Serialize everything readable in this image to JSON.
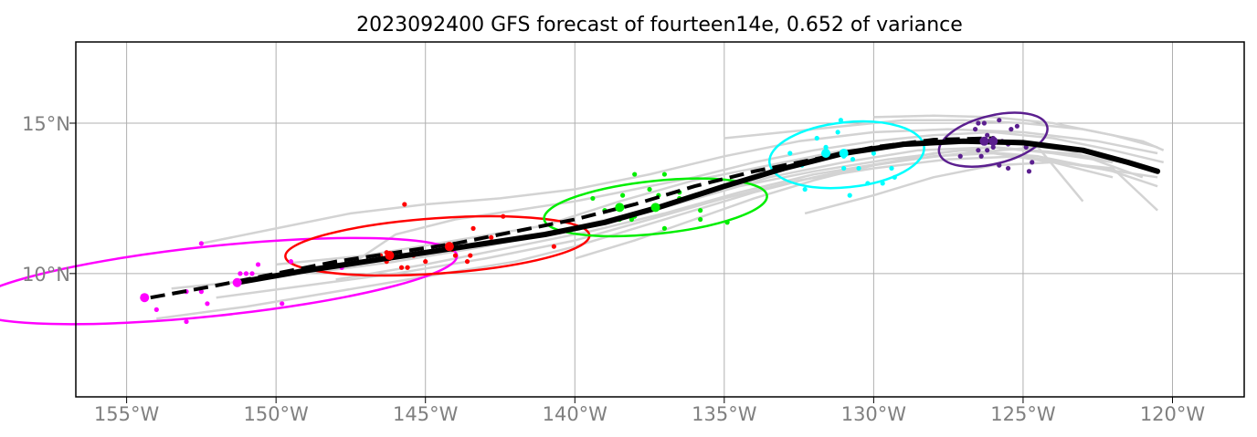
{
  "chart_data": {
    "type": "map-track",
    "title": "2023092400 GFS forecast of fourteen14e, 0.652 of variance",
    "x_ticks": [
      {
        "value": -155,
        "label": "155°W"
      },
      {
        "value": -150,
        "label": "150°W"
      },
      {
        "value": -145,
        "label": "145°W"
      },
      {
        "value": -140,
        "label": "140°W"
      },
      {
        "value": -135,
        "label": "135°W"
      },
      {
        "value": -130,
        "label": "130°W"
      },
      {
        "value": -125,
        "label": "125°W"
      },
      {
        "value": -120,
        "label": "120°W"
      }
    ],
    "y_ticks": [
      {
        "value": 10,
        "label": "10°N"
      },
      {
        "value": 15,
        "label": "15°N"
      }
    ],
    "xlim": [
      -156.7,
      -117.6
    ],
    "ylim": [
      5.9,
      17.7
    ],
    "grid": true,
    "colors": {
      "ensemble": "#d3d3d3",
      "mean": "#000000",
      "grid": "#b0b0b0",
      "groups": [
        "#ff00ff",
        "#ff0000",
        "#00ee00",
        "#00ffff",
        "#5b1f8f"
      ]
    },
    "mean_track": [
      [
        -151.3,
        9.7
      ],
      [
        -149,
        10.1
      ],
      [
        -147,
        10.4
      ],
      [
        -145,
        10.7
      ],
      [
        -143,
        11.0
      ],
      [
        -141,
        11.3
      ],
      [
        -139,
        11.7
      ],
      [
        -137.2,
        12.2
      ],
      [
        -135,
        12.9
      ],
      [
        -133,
        13.5
      ],
      [
        -131,
        14.0
      ],
      [
        -129,
        14.3
      ],
      [
        -127,
        14.4
      ],
      [
        -125,
        14.35
      ],
      [
        -123,
        14.1
      ],
      [
        -121.5,
        13.7
      ],
      [
        -120.5,
        13.4
      ]
    ],
    "control_track": [
      [
        -154.2,
        9.2
      ],
      [
        -152,
        9.6
      ],
      [
        -150,
        10.0
      ],
      [
        -148,
        10.4
      ],
      [
        -146,
        10.7
      ],
      [
        -144,
        11.0
      ],
      [
        -142,
        11.4
      ],
      [
        -140,
        11.8
      ],
      [
        -138,
        12.3
      ],
      [
        -136,
        12.9
      ],
      [
        -134,
        13.4
      ],
      [
        -132,
        13.8
      ],
      [
        -130,
        14.2
      ],
      [
        -128,
        14.45
      ],
      [
        -126,
        14.5
      ]
    ],
    "ensemble_tracks": [
      [
        [
          -152.5,
          11.0
        ],
        [
          -150,
          11.5
        ],
        [
          -147.5,
          12.0
        ],
        [
          -145,
          12.3
        ],
        [
          -142.5,
          12.5
        ],
        [
          -140,
          12.8
        ],
        [
          -137.5,
          13.3
        ],
        [
          -135,
          13.9
        ],
        [
          -132.5,
          14.4
        ],
        [
          -130,
          14.7
        ],
        [
          -127.5,
          14.8
        ],
        [
          -125,
          14.7
        ],
        [
          -122.5,
          14.4
        ],
        [
          -120.5,
          14.0
        ]
      ],
      [
        [
          -154.0,
          8.5
        ],
        [
          -151,
          8.9
        ],
        [
          -148,
          9.4
        ],
        [
          -145,
          9.9
        ],
        [
          -142,
          10.4
        ],
        [
          -140,
          10.9
        ],
        [
          -138,
          11.5
        ],
        [
          -136,
          12.1
        ],
        [
          -134,
          12.7
        ],
        [
          -132,
          13.2
        ],
        [
          -130,
          13.6
        ],
        [
          -128,
          13.9
        ],
        [
          -126,
          14.0
        ],
        [
          -124,
          13.7
        ],
        [
          -122,
          13.2
        ]
      ],
      [
        [
          -153.5,
          9.5
        ],
        [
          -150.5,
          9.8
        ],
        [
          -147.5,
          10.3
        ],
        [
          -144.5,
          10.8
        ],
        [
          -141.5,
          11.2
        ],
        [
          -138.5,
          11.9
        ],
        [
          -136,
          12.5
        ],
        [
          -133.5,
          13.2
        ],
        [
          -131,
          13.7
        ],
        [
          -128.5,
          14.1
        ],
        [
          -126,
          14.2
        ],
        [
          -123.5,
          14.0
        ],
        [
          -121,
          13.6
        ]
      ],
      [
        [
          -152,
          9.2
        ],
        [
          -149,
          9.6
        ],
        [
          -146,
          10.0
        ],
        [
          -143,
          10.5
        ],
        [
          -140,
          11.1
        ],
        [
          -137.5,
          11.8
        ],
        [
          -135,
          12.5
        ],
        [
          -132.5,
          13.1
        ],
        [
          -130,
          13.5
        ],
        [
          -127.5,
          13.8
        ],
        [
          -125,
          13.9
        ],
        [
          -122.5,
          13.5
        ],
        [
          -120.5,
          13.2
        ]
      ],
      [
        [
          -140,
          10.5
        ],
        [
          -138,
          11.1
        ],
        [
          -136,
          11.8
        ],
        [
          -134,
          12.5
        ],
        [
          -132,
          13.1
        ],
        [
          -130,
          13.6
        ],
        [
          -128,
          14.0
        ],
        [
          -126,
          14.2
        ],
        [
          -124,
          14.0
        ],
        [
          -122,
          13.7
        ]
      ],
      [
        [
          -135,
          14.5
        ],
        [
          -133,
          14.7
        ],
        [
          -131,
          14.9
        ],
        [
          -129,
          15.1
        ],
        [
          -127,
          15.1
        ],
        [
          -125,
          15.0
        ],
        [
          -123,
          14.8
        ],
        [
          -121,
          14.4
        ],
        [
          -120.3,
          14.1
        ]
      ],
      [
        [
          -132.3,
          12.0
        ],
        [
          -130,
          12.6
        ],
        [
          -128,
          13.2
        ],
        [
          -126,
          13.6
        ],
        [
          -124,
          13.7
        ],
        [
          -122,
          13.5
        ],
        [
          -120.5,
          12.1
        ]
      ],
      [
        [
          -147.5,
          10.3
        ],
        [
          -146,
          11.3
        ],
        [
          -144,
          11.8
        ],
        [
          -142,
          12.1
        ],
        [
          -140,
          12.4
        ],
        [
          -138,
          12.8
        ],
        [
          -136,
          13.2
        ],
        [
          -134,
          13.7
        ],
        [
          -132,
          14.1
        ],
        [
          -130,
          14.4
        ],
        [
          -128,
          14.6
        ],
        [
          -126,
          14.7
        ],
        [
          -124,
          14.5
        ],
        [
          -122,
          14.1
        ],
        [
          -120.3,
          13.7
        ]
      ],
      [
        [
          -150,
          10.3
        ],
        [
          -147,
          10.6
        ],
        [
          -144,
          11.1
        ],
        [
          -141,
          11.6
        ],
        [
          -138.5,
          12.4
        ],
        [
          -136,
          13.1
        ],
        [
          -133.5,
          13.6
        ],
        [
          -131,
          14.1
        ],
        [
          -128.5,
          14.3
        ],
        [
          -126,
          14.4
        ],
        [
          -123.5,
          14.1
        ],
        [
          -121,
          13.2
        ]
      ],
      [
        [
          -149,
          10.0
        ],
        [
          -146,
          10.4
        ],
        [
          -143,
          10.9
        ],
        [
          -140,
          11.5
        ],
        [
          -137,
          12.2
        ],
        [
          -134.5,
          12.9
        ],
        [
          -132,
          13.4
        ],
        [
          -129.5,
          13.8
        ],
        [
          -127,
          14.1
        ],
        [
          -124.5,
          13.9
        ],
        [
          -122,
          13.4
        ],
        [
          -120.5,
          12.9
        ]
      ],
      [
        [
          -148,
          9.8
        ],
        [
          -145,
          10.3
        ],
        [
          -142,
          10.9
        ],
        [
          -139.5,
          11.4
        ],
        [
          -137,
          12.0
        ],
        [
          -134.5,
          12.7
        ],
        [
          -132,
          13.3
        ],
        [
          -129.5,
          13.7
        ],
        [
          -127,
          14.0
        ],
        [
          -124.5,
          14.2
        ],
        [
          -123,
          12.4
        ]
      ],
      [
        [
          -130,
          15.2
        ],
        [
          -128,
          15.25
        ],
        [
          -126,
          15.2
        ],
        [
          -124,
          15.0
        ],
        [
          -122,
          14.6
        ],
        [
          -120.5,
          14.2
        ]
      ]
    ],
    "groups": [
      {
        "color": "#ff00ff",
        "mean": [
          -151.3,
          9.7
        ],
        "control": [
          -154.4,
          9.2
        ],
        "ellipse": {
          "cx": -152.1,
          "cy": 9.75,
          "rx": 8.2,
          "ry": 1.16,
          "angle_deg": -6
        },
        "points": [
          [
            -153,
            9.4
          ],
          [
            -152.5,
            9.4
          ],
          [
            -151,
            10.0
          ],
          [
            -150.8,
            10.0
          ],
          [
            -150.6,
            10.3
          ],
          [
            -149.5,
            10.4
          ],
          [
            -147.8,
            10.2
          ],
          [
            -152.3,
            9.0
          ],
          [
            -149.8,
            9.0
          ],
          [
            -154,
            8.8
          ],
          [
            -153,
            8.4
          ],
          [
            -152.5,
            11.0
          ],
          [
            -151.2,
            10.0
          ]
        ]
      },
      {
        "color": "#ff0000",
        "mean": [
          -146.2,
          10.6
        ],
        "control": [
          -144.2,
          10.9
        ],
        "ellipse": {
          "cx": -144.6,
          "cy": 10.92,
          "rx": 5.1,
          "ry": 0.92,
          "angle_deg": -4
        },
        "points": [
          [
            -146.3,
            10.7
          ],
          [
            -146.2,
            10.5
          ],
          [
            -146.3,
            10.4
          ],
          [
            -145.4,
            10.6
          ],
          [
            -145,
            10.4
          ],
          [
            -145.6,
            10.2
          ],
          [
            -145.8,
            10.2
          ],
          [
            -144.1,
            10.8
          ],
          [
            -144,
            10.6
          ],
          [
            -143.5,
            10.6
          ],
          [
            -143.6,
            10.4
          ],
          [
            -143,
            11.0
          ],
          [
            -142.8,
            11.2
          ],
          [
            -142.4,
            11.9
          ],
          [
            -143.4,
            11.5
          ],
          [
            -145.7,
            12.3
          ],
          [
            -140.7,
            10.9
          ],
          [
            -146.5,
            10.6
          ]
        ]
      },
      {
        "color": "#00ee00",
        "mean": [
          -137.3,
          12.2
        ],
        "control": [
          -138.5,
          12.2
        ],
        "ellipse": {
          "cx": -137.3,
          "cy": 12.2,
          "rx": 3.75,
          "ry": 0.88,
          "angle_deg": -6
        },
        "points": [
          [
            -139.4,
            12.5
          ],
          [
            -139,
            12.1
          ],
          [
            -138.4,
            12.6
          ],
          [
            -138,
            13.3
          ],
          [
            -137.5,
            12.8
          ],
          [
            -137.2,
            12.6
          ],
          [
            -137,
            13.3
          ],
          [
            -136.5,
            12.7
          ],
          [
            -136.5,
            12.5
          ],
          [
            -138,
            11.9
          ],
          [
            -138.1,
            11.8
          ],
          [
            -137,
            11.5
          ],
          [
            -135.8,
            12.1
          ],
          [
            -135.8,
            11.8
          ],
          [
            -134.9,
            11.7
          ],
          [
            -138.5,
            11.8
          ]
        ]
      },
      {
        "color": "#00ffff",
        "mean": [
          -131,
          14.0
        ],
        "control": [
          -131.6,
          14.0
        ],
        "ellipse": {
          "cx": -130.9,
          "cy": 13.95,
          "rx": 2.6,
          "ry": 1.08,
          "angle_deg": -6
        },
        "points": [
          [
            -131.9,
            14.5
          ],
          [
            -131.6,
            14.2
          ],
          [
            -131.2,
            14.7
          ],
          [
            -131.1,
            15.1
          ],
          [
            -131,
            13.9
          ],
          [
            -130.7,
            13.8
          ],
          [
            -130.4,
            14.1
          ],
          [
            -130,
            14.0
          ],
          [
            -129.4,
            13.5
          ],
          [
            -129.3,
            13.2
          ],
          [
            -130.2,
            13.0
          ],
          [
            -130.5,
            13.5
          ],
          [
            -131,
            13.5
          ],
          [
            -130.8,
            12.6
          ],
          [
            -132.3,
            12.8
          ],
          [
            -132.4,
            13.6
          ],
          [
            -132.8,
            14.0
          ],
          [
            -129.7,
            13.0
          ]
        ]
      },
      {
        "color": "#5b1f8f",
        "mean": [
          -126.0,
          14.4
        ],
        "control": [
          -126.3,
          14.4
        ],
        "ellipse": {
          "cx": -126.0,
          "cy": 14.45,
          "rx": 1.86,
          "ry": 0.8,
          "angle_deg": -14
        },
        "points": [
          [
            -126.5,
            15.0
          ],
          [
            -126.3,
            15.0
          ],
          [
            -125.8,
            15.1
          ],
          [
            -125.4,
            14.8
          ],
          [
            -125.2,
            14.9
          ],
          [
            -125.7,
            14.4
          ],
          [
            -125.5,
            14.3
          ],
          [
            -126,
            14.2
          ],
          [
            -126.2,
            14.1
          ],
          [
            -126.5,
            14.1
          ],
          [
            -126.4,
            13.9
          ],
          [
            -125.8,
            13.6
          ],
          [
            -125.5,
            13.5
          ],
          [
            -124.7,
            13.7
          ],
          [
            -127.1,
            13.9
          ],
          [
            -124.9,
            14.2
          ],
          [
            -126,
            14.5
          ],
          [
            -126.2,
            14.6
          ],
          [
            -126.6,
            14.8
          ],
          [
            -124.8,
            13.4
          ]
        ]
      }
    ]
  }
}
